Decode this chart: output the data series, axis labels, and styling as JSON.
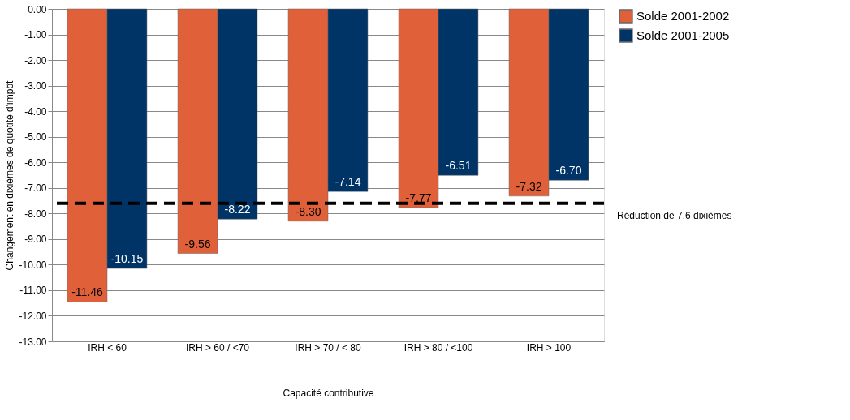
{
  "chart_data": {
    "type": "bar",
    "xlabel": "Capacité contributive",
    "ylabel": "Changement en dixièmes de quotité d'impôt",
    "categories": [
      "IRH < 60",
      "IRH > 60 / <70",
      "IRH > 70 / < 80",
      "IRH > 80 / <100",
      "IRH > 100"
    ],
    "series": [
      {
        "name": "Solde 2001-2002",
        "color": "#e0603a",
        "values": [
          -11.46,
          -9.56,
          -8.3,
          -7.77,
          -7.32
        ],
        "value_labels": [
          "-11.46",
          "-9.56",
          "-8.30",
          "-7.77",
          "-7.32"
        ]
      },
      {
        "name": "Solde 2001-2005",
        "color": "#003366",
        "values": [
          -10.15,
          -8.22,
          -7.14,
          -6.51,
          -6.7
        ],
        "value_labels": [
          "-10.15",
          "-8.22",
          "-7.14",
          "-6.51",
          "-6.70"
        ]
      }
    ],
    "ylim": [
      -13,
      0
    ],
    "yticks": [
      {
        "value": 0,
        "label": "0.00"
      },
      {
        "value": -1,
        "label": "-1.00"
      },
      {
        "value": -2,
        "label": "-2.00"
      },
      {
        "value": -3,
        "label": "-3.00"
      },
      {
        "value": -4,
        "label": "-4.00"
      },
      {
        "value": -5,
        "label": "-5.00"
      },
      {
        "value": -6,
        "label": "-6.00"
      },
      {
        "value": -7,
        "label": "-7.00"
      },
      {
        "value": -8,
        "label": "-8.00"
      },
      {
        "value": -9,
        "label": "-9.00"
      },
      {
        "value": -10,
        "label": "-10.00"
      },
      {
        "value": -11,
        "label": "-11.00"
      },
      {
        "value": -12,
        "label": "-12.00"
      },
      {
        "value": -13,
        "label": "-13.00"
      }
    ],
    "ref_lines": [
      {
        "axis": "y",
        "value": -7.6,
        "label": "Réduction de 7,6 dixièmes",
        "color": "#000000",
        "line_style": "dashed"
      }
    ],
    "grid": "y",
    "legend": "right"
  }
}
